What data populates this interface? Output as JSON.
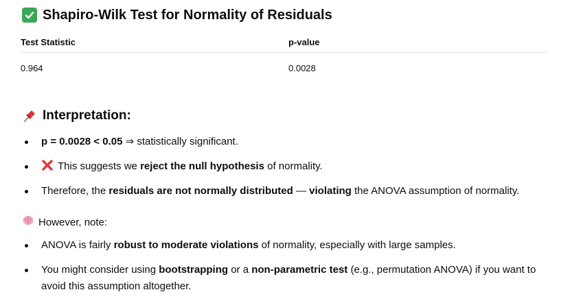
{
  "title": "Shapiro-Wilk Test for Normality of Residuals",
  "table": {
    "headers": [
      "Test Statistic",
      "p-value"
    ],
    "rows": [
      [
        "0.964",
        "0.0028"
      ]
    ]
  },
  "interpretation": {
    "heading": "Interpretation:",
    "bullet1": {
      "bold": "p = 0.0028 < 0.05",
      "rest": " ⇒ statistically significant."
    },
    "bullet2": {
      "pre": "This suggests we ",
      "bold": "reject the null hypothesis",
      "post": " of normality."
    },
    "bullet3": {
      "pre": "Therefore, the ",
      "bold1": "residuals are not normally distributed",
      "mid": " — ",
      "bold2": "violating",
      "post": " the ANOVA assumption of normality."
    }
  },
  "note": {
    "label": "However, note:",
    "bullet1": {
      "pre": "ANOVA is fairly ",
      "bold": "robust to moderate violations",
      "post": " of normality, especially with large samples."
    },
    "bullet2": {
      "pre": "You might consider using ",
      "bold1": "bootstrapping",
      "mid": " or a ",
      "bold2": "non-parametric test",
      "post": " (e.g., permutation ANOVA) if you want to avoid this assumption altogether."
    }
  },
  "icons": {
    "title_icon": "check-mark-button-icon",
    "heading_icon": "pushpin-icon",
    "cross_icon": "cross-mark-icon",
    "note_icon": "brain-icon"
  }
}
